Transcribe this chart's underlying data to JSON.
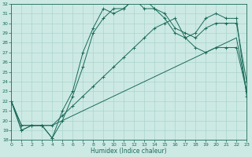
{
  "xlabel": "Humidex (Indice chaleur)",
  "xlim": [
    0,
    23
  ],
  "ylim": [
    18,
    32
  ],
  "yticks": [
    18,
    19,
    20,
    21,
    22,
    23,
    24,
    25,
    26,
    27,
    28,
    29,
    30,
    31,
    32
  ],
  "xticks": [
    0,
    1,
    2,
    3,
    4,
    5,
    6,
    7,
    8,
    9,
    10,
    11,
    12,
    13,
    14,
    15,
    16,
    17,
    18,
    19,
    20,
    21,
    22,
    23
  ],
  "line_color": "#1a6b5a",
  "bg_color": "#cde9e4",
  "grid_color": "#aad4ce",
  "lines": [
    {
      "x": [
        0,
        1,
        2,
        3,
        4,
        5,
        6,
        7,
        8,
        9,
        10,
        11,
        12,
        13,
        14,
        15,
        16,
        17,
        18,
        19,
        20,
        21,
        22,
        23
      ],
      "y": [
        22,
        19.5,
        19.5,
        19.5,
        19.5,
        20.0,
        20.5,
        21.0,
        21.5,
        22.0,
        22.5,
        23.0,
        23.5,
        24.0,
        24.5,
        25.0,
        25.5,
        26.0,
        26.5,
        27.0,
        27.5,
        28.0,
        28.5,
        23.0
      ],
      "marker": false
    },
    {
      "x": [
        0,
        1,
        2,
        3,
        4,
        5,
        6,
        7,
        8,
        9,
        10,
        11,
        12,
        13,
        14,
        15,
        16,
        17,
        18,
        19,
        20,
        21,
        22,
        23
      ],
      "y": [
        22,
        19.5,
        19.5,
        19.5,
        19.5,
        20.5,
        21.5,
        22.5,
        23.5,
        24.5,
        25.5,
        26.5,
        27.5,
        28.5,
        29.5,
        30.0,
        30.5,
        28.5,
        27.5,
        27.0,
        27.5,
        27.5,
        27.5,
        23.0
      ],
      "marker": true
    },
    {
      "x": [
        0,
        1,
        2,
        3,
        4,
        5,
        6,
        7,
        8,
        9,
        10,
        11,
        12,
        13,
        14,
        15,
        16,
        17,
        18,
        19,
        20,
        21,
        22,
        23
      ],
      "y": [
        22,
        19.0,
        19.5,
        19.5,
        18.2,
        20.0,
        22.5,
        25.5,
        29.0,
        30.5,
        31.5,
        31.5,
        32.5,
        31.5,
        31.5,
        31.0,
        29.5,
        29.0,
        28.5,
        29.5,
        30.0,
        30.0,
        30.0,
        24.0
      ],
      "marker": true
    },
    {
      "x": [
        0,
        1,
        2,
        3,
        4,
        5,
        6,
        7,
        8,
        9,
        10,
        11,
        12,
        13,
        14,
        15,
        16,
        17,
        18,
        19,
        20,
        21,
        22,
        23
      ],
      "y": [
        22,
        19.0,
        19.5,
        19.5,
        18.2,
        21.0,
        23.0,
        27.0,
        29.5,
        31.5,
        31.0,
        31.5,
        32.5,
        32.5,
        31.5,
        30.5,
        29.0,
        28.5,
        29.0,
        30.5,
        31.0,
        30.5,
        30.5,
        22.5
      ],
      "marker": true
    }
  ]
}
